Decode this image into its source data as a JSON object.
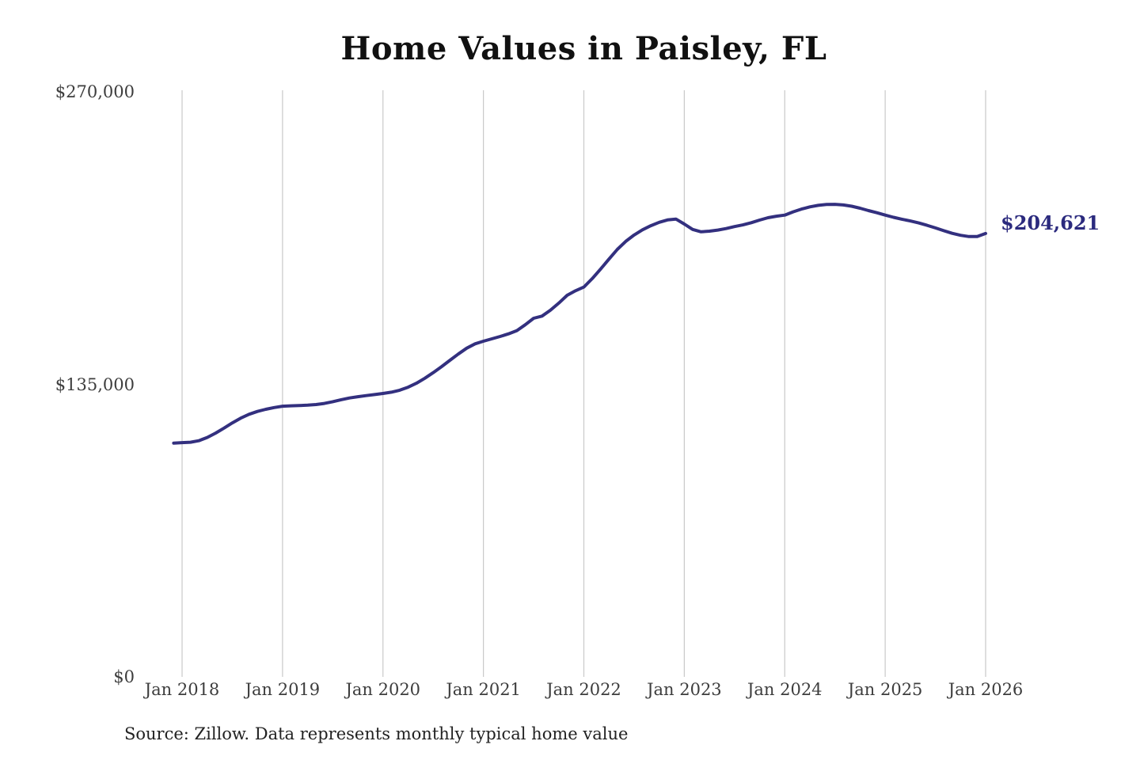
{
  "header": {
    "title": "Home Values in Paisley, FL"
  },
  "annotation": {
    "latest_value_label": "$204,621"
  },
  "footer": {
    "source": "Source: Zillow. Data represents monthly typical home value"
  },
  "colors": {
    "line": "#33307f",
    "annotation_text": "#2b2a7e",
    "gridline": "#c9c9c9",
    "axis_text": "#3d3d3d",
    "title_text": "#111111",
    "source_text": "#222222",
    "background": "#ffffff"
  },
  "chart_data": {
    "type": "line",
    "title": "Home Values in Paisley, FL",
    "xlabel": "",
    "ylabel": "",
    "ylim": [
      0,
      270000
    ],
    "grid": "vertical-only",
    "legend": "none",
    "y_ticks": [
      {
        "value": 0,
        "label": "$0"
      },
      {
        "value": 135000,
        "label": "$135,000"
      },
      {
        "value": 270000,
        "label": "$270,000"
      }
    ],
    "x_tick_labels": [
      "Jan 2018",
      "Jan 2019",
      "Jan 2020",
      "Jan 2021",
      "Jan 2022",
      "Jan 2023",
      "Jan 2024",
      "Jan 2025",
      "Jan 2026"
    ],
    "x_tick_positions": [
      1,
      13,
      25,
      37,
      49,
      61,
      73,
      85,
      97
    ],
    "end_label": "$204,621",
    "series": [
      {
        "name": "Monthly typical home value",
        "x": [
          "2017-12",
          "2018-01",
          "2018-02",
          "2018-03",
          "2018-04",
          "2018-05",
          "2018-06",
          "2018-07",
          "2018-08",
          "2018-09",
          "2018-10",
          "2018-11",
          "2018-12",
          "2019-01",
          "2019-02",
          "2019-03",
          "2019-04",
          "2019-05",
          "2019-06",
          "2019-07",
          "2019-08",
          "2019-09",
          "2019-10",
          "2019-11",
          "2019-12",
          "2020-01",
          "2020-02",
          "2020-03",
          "2020-04",
          "2020-05",
          "2020-06",
          "2020-07",
          "2020-08",
          "2020-09",
          "2020-10",
          "2020-11",
          "2020-12",
          "2021-01",
          "2021-02",
          "2021-03",
          "2021-04",
          "2021-05",
          "2021-06",
          "2021-07",
          "2021-08",
          "2021-09",
          "2021-10",
          "2021-11",
          "2021-12",
          "2022-01",
          "2022-02",
          "2022-03",
          "2022-04",
          "2022-05",
          "2022-06",
          "2022-07",
          "2022-08",
          "2022-09",
          "2022-10",
          "2022-11",
          "2022-12",
          "2023-01",
          "2023-02",
          "2023-03",
          "2023-04",
          "2023-05",
          "2023-06",
          "2023-07",
          "2023-08",
          "2023-09",
          "2023-10",
          "2023-11",
          "2023-12",
          "2024-01",
          "2024-02",
          "2024-03",
          "2024-04",
          "2024-05",
          "2024-06",
          "2024-07",
          "2024-08",
          "2024-09",
          "2024-10",
          "2024-11",
          "2024-12",
          "2025-01",
          "2025-02",
          "2025-03",
          "2025-04",
          "2025-05",
          "2025-06",
          "2025-07",
          "2025-08",
          "2025-09",
          "2025-10",
          "2025-11",
          "2025-12",
          "2026-01"
        ],
        "values": [
          107900,
          108100,
          108300,
          109000,
          110500,
          112500,
          114800,
          117200,
          119400,
          121200,
          122500,
          123500,
          124300,
          124900,
          125100,
          125200,
          125400,
          125700,
          126200,
          127000,
          127900,
          128700,
          129300,
          129800,
          130300,
          130800,
          131400,
          132300,
          133700,
          135500,
          137800,
          140400,
          143200,
          146100,
          149000,
          151700,
          153700,
          154900,
          156000,
          157100,
          158300,
          159800,
          162500,
          165500,
          166500,
          169200,
          172500,
          176100,
          178200,
          179900,
          183800,
          188200,
          192800,
          197300,
          201000,
          203900,
          206300,
          208200,
          209800,
          210900,
          211300,
          209000,
          206500,
          205400,
          205700,
          206200,
          206900,
          207800,
          208600,
          209600,
          210800,
          211900,
          212600,
          213100,
          214600,
          215900,
          216900,
          217600,
          218000,
          218100,
          217800,
          217200,
          216300,
          215200,
          214200,
          213100,
          212100,
          211200,
          210400,
          209500,
          208400,
          207200,
          205900,
          204700,
          203800,
          203200,
          203200,
          204621
        ]
      }
    ]
  }
}
